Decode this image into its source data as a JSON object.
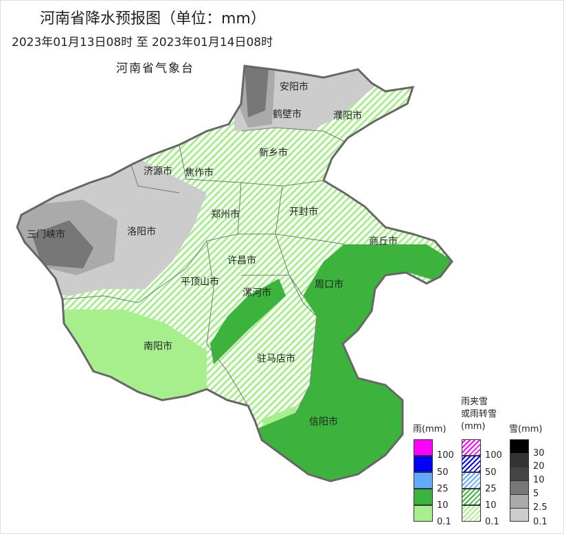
{
  "header": {
    "title": "河南省降水预报图（单位：mm）",
    "period": "2023年01月13日08时  至  2023年01月14日08时",
    "agency": "河南省气象台"
  },
  "map": {
    "cities": [
      "安阳市",
      "鹤壁市",
      "濮阳市",
      "新乡市",
      "济源市",
      "焦作市",
      "郑州市",
      "开封市",
      "三门峡市",
      "洛阳市",
      "商丘市",
      "许昌市",
      "平顶山市",
      "漯河市",
      "周口市",
      "南阳市",
      "驻马店市",
      "信阳市"
    ]
  },
  "legend": {
    "rain": {
      "title": "雨(mm)",
      "labels": [
        "100",
        "50",
        "25",
        "10",
        "0.1"
      ],
      "colors": [
        "#ff00ff",
        "#0000ff",
        "#60aaff",
        "#3cb33c",
        "#a6ef8c"
      ]
    },
    "mixed": {
      "title_line1": "雨夹雪",
      "title_line2": "或雨转雪",
      "title_line3": "(mm)",
      "labels": [
        "100",
        "50",
        "25",
        "10",
        "0.1"
      ],
      "colors": [
        "#ff00ff",
        "#0000ff",
        "#60aaff",
        "#3cb33c",
        "#a6ef8c"
      ]
    },
    "snow": {
      "title": "雪(mm)",
      "labels": [
        "30",
        "20",
        "10",
        "5",
        "2.5",
        "0.1"
      ],
      "colors": [
        "#000000",
        "#333333",
        "#444444",
        "#777777",
        "#aaaaaa",
        "#cccccc"
      ]
    }
  }
}
